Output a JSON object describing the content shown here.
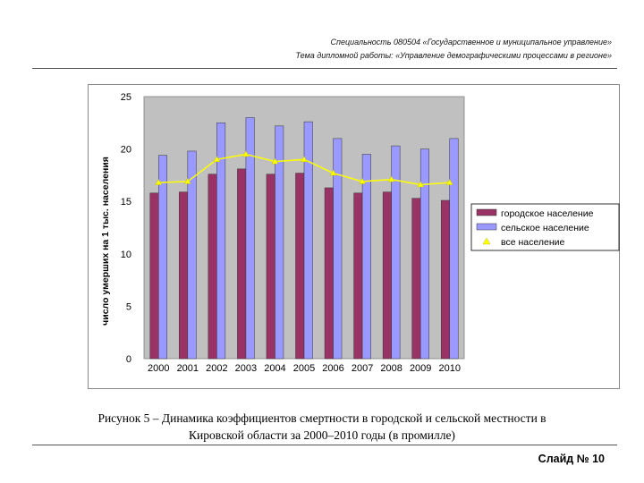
{
  "header": {
    "line1": "Специальность 080504 «Государственное и муниципальное управление»",
    "line2": "Тема дипломной работы: «Управление демографическими процессами в регионе»"
  },
  "chart_data": {
    "type": "bar",
    "title": "",
    "xlabel": "",
    "ylabel": "число умерших на 1 тыс. населения",
    "ylim": [
      0,
      25
    ],
    "yticks": [
      0,
      5,
      10,
      15,
      20,
      25
    ],
    "categories": [
      "2000",
      "2001",
      "2002",
      "2003",
      "2004",
      "2005",
      "2006",
      "2007",
      "2008",
      "2009",
      "2010"
    ],
    "series": [
      {
        "name": "городское население",
        "kind": "bar",
        "color": "#993366",
        "values": [
          15.8,
          15.9,
          17.6,
          18.1,
          17.6,
          17.7,
          16.3,
          15.8,
          15.9,
          15.3,
          15.1
        ]
      },
      {
        "name": "сельское население",
        "kind": "bar",
        "color": "#9999ff",
        "values": [
          19.4,
          19.8,
          22.5,
          23.0,
          22.2,
          22.6,
          21.0,
          19.5,
          20.3,
          20.0,
          21.0
        ]
      },
      {
        "name": "все население",
        "kind": "line",
        "color": "#ffff00",
        "values": [
          16.8,
          16.9,
          19.0,
          19.5,
          18.8,
          19.0,
          17.7,
          16.9,
          17.1,
          16.6,
          16.8
        ]
      }
    ],
    "legend": "right",
    "grid": false,
    "plot_background": "#c0c0c0"
  },
  "caption": {
    "line1": "Рисунок 5 – Динамика коэффициентов смертности в городской и сельской местности в",
    "line2": "Кировской области за 2000–2010 годы (в промилле)"
  },
  "footer": {
    "slide": "Слайд № 10"
  }
}
